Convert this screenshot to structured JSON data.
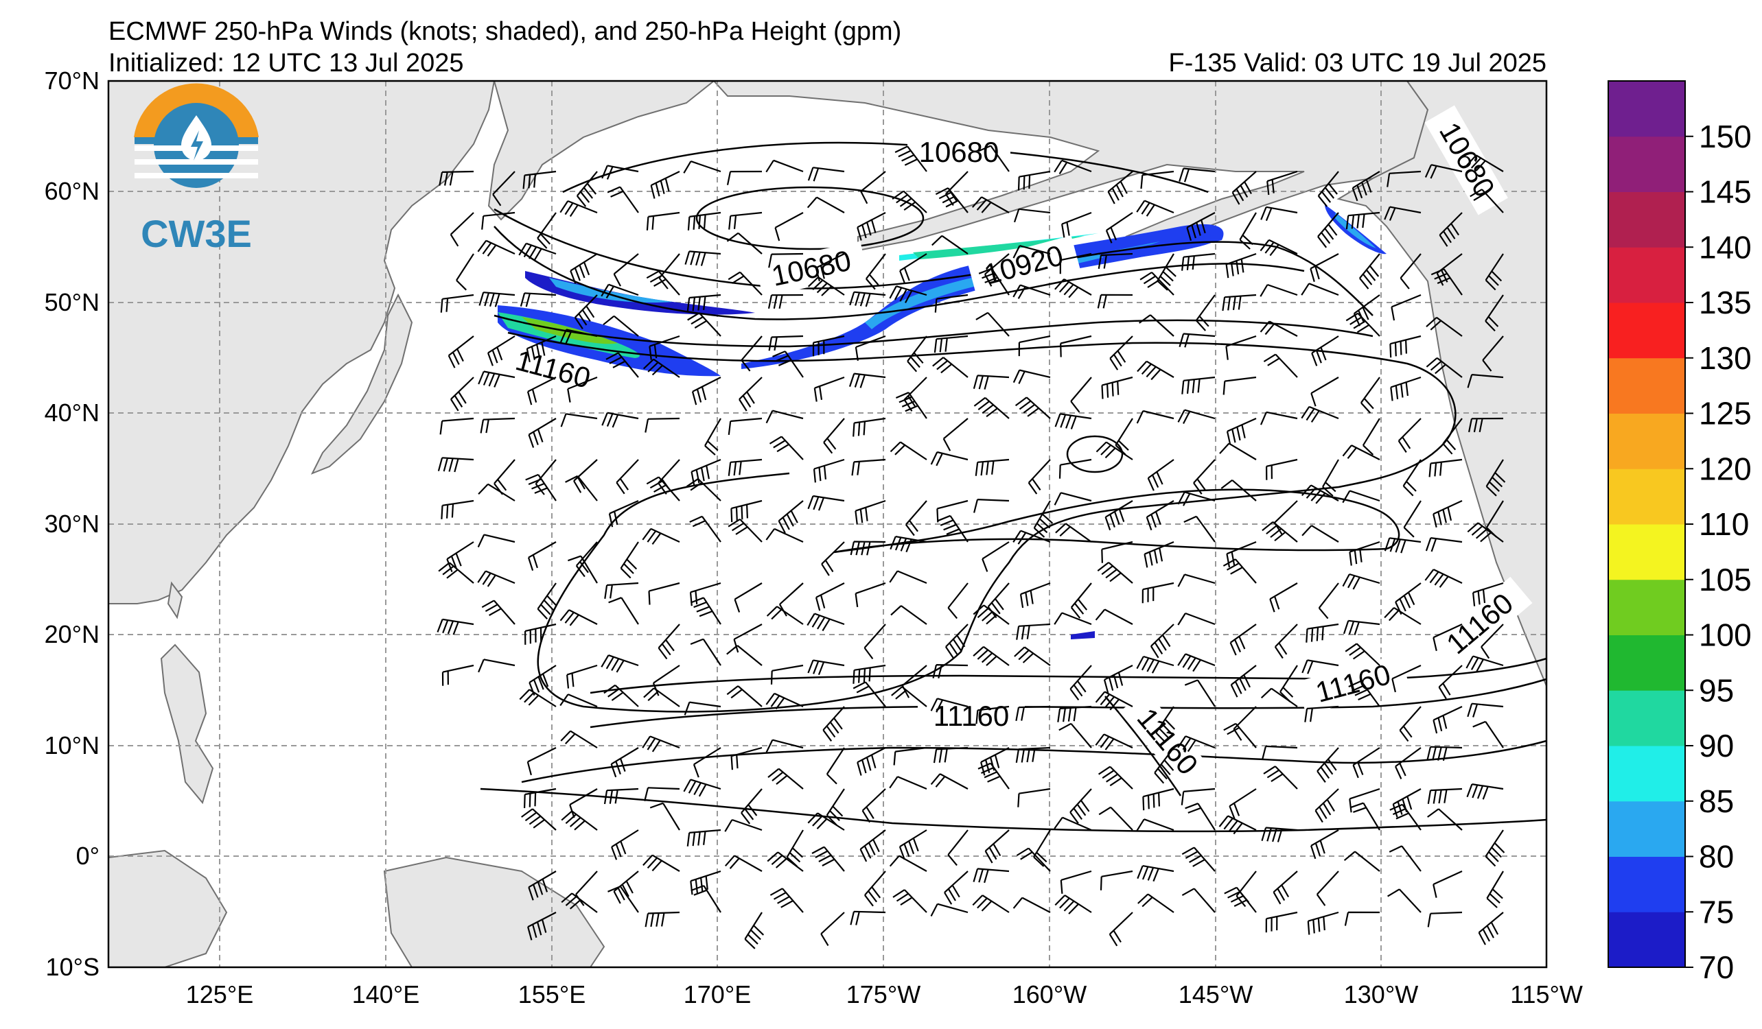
{
  "title": {
    "line1": "ECMWF 250-hPa Winds (knots; shaded), and 250-hPa Height (gpm)",
    "initialized": "Initialized: 12 UTC 13 Jul 2025",
    "valid": "F-135  Valid: 03 UTC 19 Jul 2025"
  },
  "logo": {
    "text": "CW3E",
    "icon": "water-drop-logo-icon"
  },
  "axes": {
    "lat_labels": [
      "70°N",
      "60°N",
      "50°N",
      "40°N",
      "30°N",
      "20°N",
      "10°N",
      "0°",
      "10°S"
    ],
    "lon_labels": [
      "125°E",
      "140°E",
      "155°E",
      "170°E",
      "175°W",
      "160°W",
      "145°W",
      "130°W",
      "115°W"
    ]
  },
  "colorbar": {
    "ticks": [
      "70",
      "75",
      "80",
      "85",
      "90",
      "95",
      "100",
      "105",
      "110",
      "120",
      "125",
      "130",
      "135",
      "140",
      "145",
      "150"
    ],
    "colors": [
      "#1c1cc8",
      "#1f3ef0",
      "#2aa8f0",
      "#20eee8",
      "#20d8a0",
      "#20b830",
      "#70cc20",
      "#f4f420",
      "#f8c820",
      "#f8a820",
      "#f87820",
      "#f82020",
      "#d82040",
      "#b02050",
      "#901f78",
      "#6f1f8f"
    ]
  },
  "contour_labels": [
    "10680",
    "10680",
    "10680",
    "10920",
    "11160",
    "11160",
    "11160",
    "11160",
    "11160"
  ],
  "colors": {
    "land": "#e6e6e6",
    "coast": "#707070",
    "grid": "#999999"
  }
}
